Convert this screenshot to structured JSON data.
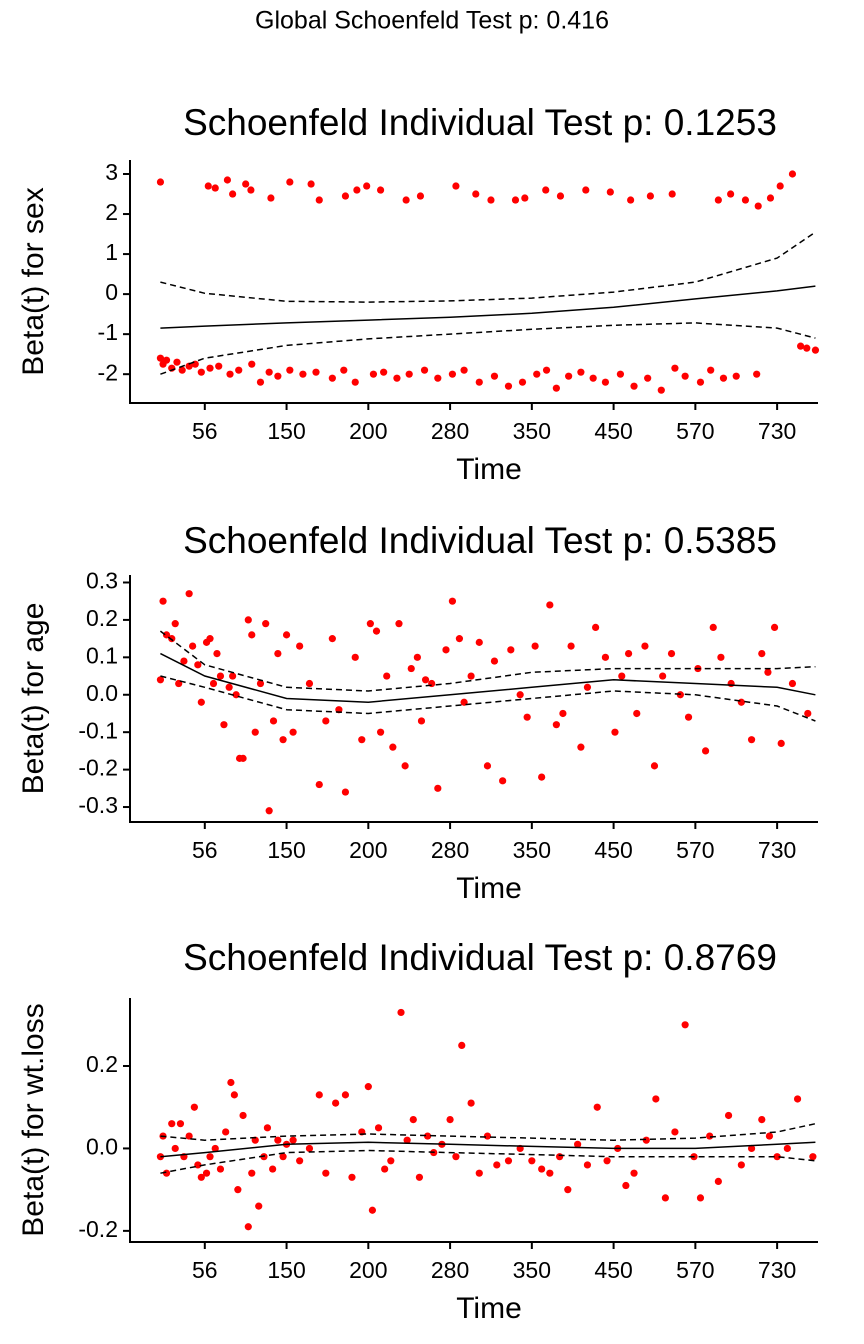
{
  "title": "Global Schoenfeld Test p: 0.416",
  "chart_data": [
    {
      "type": "scatter",
      "title": "Schoenfeld Individual Test p: 0.1253",
      "xlabel": "Time",
      "ylabel": "Beta(t) for sex",
      "xscale": "tick-spaced",
      "xlim": [
        -30,
        810
      ],
      "xticks": [
        56,
        150,
        200,
        280,
        350,
        450,
        570,
        730
      ],
      "ylim": [
        -2.72,
        3.35
      ],
      "yticks": [
        -2,
        -1,
        0,
        1,
        2,
        3
      ],
      "series": [
        {
          "mark": "point",
          "color": "#ff0000",
          "x": [
            5,
            60,
            68,
            82,
            88,
            103,
            109,
            132,
            152,
            165,
            170,
            186,
            193,
            199,
            212,
            237,
            251,
            285,
            302,
            315,
            336,
            344,
            367,
            385,
            416,
            446,
            475,
            504,
            536,
            615,
            639,
            668,
            693,
            717,
            736,
            760,
            5,
            8,
            12,
            18,
            24,
            30,
            38,
            45,
            52,
            62,
            72,
            85,
            95,
            110,
            120,
            130,
            140,
            152,
            160,
            168,
            178,
            185,
            192,
            205,
            215,
            228,
            240,
            255,
            268,
            282,
            292,
            305,
            318,
            330,
            342,
            356,
            368,
            380,
            395,
            410,
            425,
            440,
            460,
            480,
            500,
            520,
            540,
            555,
            580,
            600,
            625,
            650,
            690,
            776,
            788,
            805
          ],
          "values": [
            2.8,
            2.7,
            2.65,
            2.85,
            2.5,
            2.75,
            2.6,
            2.4,
            2.8,
            2.75,
            2.35,
            2.45,
            2.6,
            2.7,
            2.6,
            2.35,
            2.45,
            2.7,
            2.5,
            2.35,
            2.35,
            2.4,
            2.6,
            2.45,
            2.6,
            2.55,
            2.35,
            2.45,
            2.5,
            2.35,
            2.5,
            2.35,
            2.2,
            2.4,
            2.7,
            3.0,
            -1.6,
            -1.75,
            -1.65,
            -1.85,
            -1.7,
            -1.9,
            -1.8,
            -1.75,
            -1.95,
            -1.85,
            -1.8,
            -2.0,
            -1.9,
            -1.75,
            -2.2,
            -1.95,
            -2.05,
            -1.9,
            -2.0,
            -1.95,
            -2.1,
            -1.9,
            -2.2,
            -2.0,
            -1.95,
            -2.1,
            -2.0,
            -1.9,
            -2.1,
            -2.0,
            -1.9,
            -2.2,
            -2.05,
            -2.3,
            -2.2,
            -2.0,
            -1.9,
            -2.35,
            -2.05,
            -1.95,
            -2.1,
            -2.2,
            -2.0,
            -2.3,
            -2.1,
            -2.4,
            -1.85,
            -2.05,
            -2.2,
            -1.9,
            -2.1,
            -2.05,
            -2.0,
            -1.3,
            -1.35,
            -1.4
          ]
        },
        {
          "mark": "line",
          "dash": false,
          "color": "#000000",
          "x": [
            5,
            56,
            150,
            200,
            280,
            350,
            450,
            570,
            730,
            805
          ],
          "values": [
            -0.85,
            -0.8,
            -0.72,
            -0.65,
            -0.58,
            -0.48,
            -0.33,
            -0.12,
            0.08,
            0.2
          ]
        },
        {
          "mark": "line",
          "dash": true,
          "color": "#000000",
          "x": [
            5,
            56,
            150,
            200,
            280,
            350,
            450,
            570,
            730,
            805
          ],
          "values": [
            0.3,
            0.02,
            -0.18,
            -0.2,
            -0.17,
            -0.1,
            0.05,
            0.3,
            0.9,
            1.55
          ]
        },
        {
          "mark": "line",
          "dash": true,
          "color": "#000000",
          "x": [
            5,
            56,
            150,
            200,
            280,
            350,
            450,
            570,
            730,
            805
          ],
          "values": [
            -2.0,
            -1.6,
            -1.28,
            -1.12,
            -1.0,
            -0.88,
            -0.78,
            -0.72,
            -0.85,
            -1.1
          ]
        }
      ]
    },
    {
      "type": "scatter",
      "title": "Schoenfeld Individual Test p: 0.5385",
      "xlabel": "Time",
      "ylabel": "Beta(t) for age",
      "xscale": "tick-spaced",
      "xlim": [
        -30,
        810
      ],
      "xticks": [
        56,
        150,
        200,
        280,
        350,
        450,
        570,
        730
      ],
      "ylim": [
        -0.34,
        0.32
      ],
      "yticks": [
        -0.3,
        -0.2,
        -0.1,
        {
          "value": 0,
          "label": "0.0"
        },
        0.1,
        0.2,
        0.3
      ],
      "series": [
        {
          "mark": "point",
          "color": "#ff0000",
          "x": [
            5,
            8,
            12,
            18,
            22,
            26,
            32,
            38,
            42,
            48,
            52,
            58,
            62,
            66,
            70,
            74,
            78,
            84,
            88,
            92,
            96,
            100,
            106,
            110,
            114,
            120,
            126,
            130,
            135,
            140,
            146,
            150,
            154,
            158,
            164,
            170,
            174,
            178,
            182,
            186,
            192,
            196,
            202,
            208,
            212,
            218,
            224,
            230,
            236,
            242,
            248,
            252,
            256,
            262,
            268,
            276,
            282,
            288,
            292,
            298,
            305,
            312,
            318,
            325,
            332,
            340,
            346,
            354,
            362,
            372,
            380,
            388,
            398,
            410,
            418,
            428,
            440,
            452,
            462,
            472,
            484,
            496,
            510,
            522,
            535,
            548,
            560,
            575,
            590,
            605,
            620,
            640,
            660,
            680,
            700,
            712,
            725,
            738,
            760,
            790
          ],
          "values": [
            0.04,
            0.25,
            0.16,
            0.15,
            0.19,
            0.03,
            0.09,
            0.27,
            0.13,
            0.08,
            -0.02,
            0.14,
            0.15,
            0.03,
            0.11,
            0.05,
            -0.08,
            0.02,
            0.05,
            0.0,
            -0.17,
            -0.17,
            0.2,
            0.16,
            -0.1,
            0.03,
            0.19,
            -0.31,
            -0.07,
            0.11,
            -0.12,
            0.16,
            -0.1,
            0.13,
            0.03,
            -0.24,
            -0.07,
            0.15,
            -0.04,
            -0.26,
            0.1,
            -0.12,
            0.19,
            0.17,
            -0.1,
            0.05,
            -0.14,
            0.19,
            -0.19,
            0.07,
            0.1,
            -0.07,
            0.04,
            0.03,
            -0.25,
            0.12,
            0.25,
            0.15,
            -0.02,
            0.05,
            0.14,
            -0.19,
            0.09,
            -0.23,
            0.12,
            0.0,
            -0.06,
            0.13,
            -0.22,
            0.24,
            -0.08,
            -0.05,
            0.13,
            -0.14,
            0.02,
            0.18,
            0.1,
            -0.1,
            0.05,
            0.11,
            -0.05,
            0.13,
            -0.19,
            0.05,
            0.11,
            0.0,
            -0.06,
            0.07,
            -0.15,
            0.18,
            0.1,
            0.03,
            -0.02,
            -0.12,
            0.11,
            0.06,
            0.18,
            -0.13,
            0.03,
            -0.05
          ]
        },
        {
          "mark": "line",
          "dash": false,
          "color": "#000000",
          "x": [
            5,
            56,
            150,
            200,
            280,
            350,
            450,
            570,
            730,
            805
          ],
          "values": [
            0.11,
            0.05,
            -0.01,
            -0.02,
            0.0,
            0.02,
            0.04,
            0.03,
            0.02,
            0.0
          ]
        },
        {
          "mark": "line",
          "dash": true,
          "color": "#000000",
          "x": [
            5,
            56,
            150,
            200,
            280,
            350,
            450,
            570,
            730,
            805
          ],
          "values": [
            0.17,
            0.08,
            0.02,
            0.01,
            0.03,
            0.06,
            0.07,
            0.07,
            0.07,
            0.075
          ]
        },
        {
          "mark": "line",
          "dash": true,
          "color": "#000000",
          "x": [
            5,
            56,
            150,
            200,
            280,
            350,
            450,
            570,
            730,
            805
          ],
          "values": [
            0.05,
            0.02,
            -0.04,
            -0.05,
            -0.03,
            -0.01,
            0.01,
            0.0,
            -0.03,
            -0.07
          ]
        }
      ]
    },
    {
      "type": "scatter",
      "title": "Schoenfeld Individual Test p: 0.8769",
      "xlabel": "Time",
      "ylabel": "Beta(t) for wt.loss",
      "xscale": "tick-spaced",
      "xlim": [
        -30,
        810
      ],
      "xticks": [
        56,
        150,
        200,
        280,
        350,
        450,
        570,
        730
      ],
      "ylim": [
        -0.227,
        0.365
      ],
      "yticks": [
        -0.2,
        {
          "value": 0,
          "label": "0.0"
        },
        0.2
      ],
      "series": [
        {
          "mark": "point",
          "color": "#ff0000",
          "x": [
            5,
            8,
            12,
            18,
            22,
            28,
            32,
            38,
            44,
            48,
            52,
            58,
            62,
            68,
            74,
            80,
            86,
            90,
            94,
            100,
            106,
            110,
            114,
            118,
            124,
            128,
            134,
            140,
            146,
            150,
            154,
            158,
            164,
            170,
            174,
            180,
            186,
            190,
            196,
            200,
            204,
            210,
            216,
            222,
            232,
            238,
            244,
            250,
            258,
            264,
            272,
            280,
            285,
            290,
            298,
            305,
            312,
            320,
            330,
            340,
            350,
            362,
            372,
            384,
            394,
            406,
            418,
            430,
            442,
            456,
            468,
            480,
            498,
            512,
            526,
            540,
            555,
            568,
            580,
            598,
            615,
            635,
            660,
            680,
            700,
            715,
            730,
            750,
            770,
            800
          ],
          "values": [
            -0.02,
            0.03,
            -0.06,
            0.06,
            0.0,
            0.06,
            -0.02,
            0.03,
            0.1,
            -0.04,
            -0.07,
            -0.06,
            -0.02,
            0.0,
            -0.05,
            0.04,
            0.16,
            0.13,
            -0.1,
            0.08,
            -0.19,
            -0.06,
            0.02,
            -0.14,
            -0.02,
            0.05,
            -0.05,
            0.02,
            -0.02,
            0.01,
            0.02,
            -0.03,
            0.0,
            0.13,
            -0.06,
            0.11,
            0.13,
            -0.07,
            0.04,
            0.15,
            -0.15,
            0.05,
            -0.05,
            -0.03,
            0.33,
            0.02,
            0.07,
            -0.07,
            0.03,
            -0.01,
            0.01,
            0.07,
            -0.02,
            0.25,
            0.11,
            -0.06,
            0.03,
            -0.04,
            -0.03,
            0.0,
            -0.03,
            -0.05,
            -0.06,
            -0.02,
            -0.1,
            0.01,
            -0.04,
            0.1,
            -0.03,
            0.0,
            -0.09,
            -0.06,
            0.02,
            0.12,
            -0.12,
            0.04,
            0.3,
            -0.02,
            -0.12,
            0.03,
            -0.08,
            0.08,
            -0.04,
            0.0,
            0.07,
            0.03,
            -0.02,
            0.0,
            0.12,
            -0.02
          ]
        },
        {
          "mark": "line",
          "dash": false,
          "color": "#000000",
          "x": [
            5,
            56,
            150,
            200,
            280,
            350,
            450,
            570,
            730,
            805
          ],
          "values": [
            -0.02,
            -0.01,
            0.01,
            0.015,
            0.01,
            0.005,
            0.0,
            0.0,
            0.01,
            0.015
          ]
        },
        {
          "mark": "line",
          "dash": true,
          "color": "#000000",
          "x": [
            5,
            56,
            150,
            200,
            280,
            350,
            450,
            570,
            730,
            805
          ],
          "values": [
            0.03,
            0.02,
            0.03,
            0.035,
            0.03,
            0.025,
            0.02,
            0.025,
            0.04,
            0.06
          ]
        },
        {
          "mark": "line",
          "dash": true,
          "color": "#000000",
          "x": [
            5,
            56,
            150,
            200,
            280,
            350,
            450,
            570,
            730,
            805
          ],
          "values": [
            -0.06,
            -0.04,
            -0.01,
            -0.005,
            -0.01,
            -0.015,
            -0.02,
            -0.02,
            -0.02,
            -0.03
          ]
        }
      ]
    }
  ]
}
